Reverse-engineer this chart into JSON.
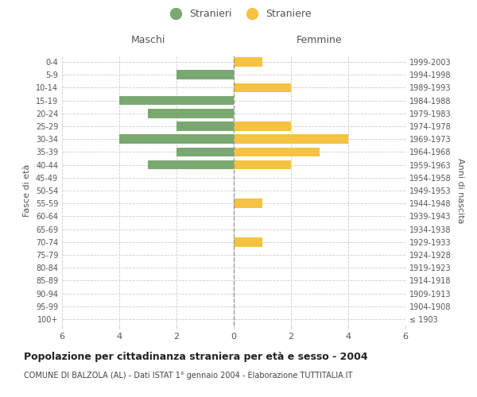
{
  "age_groups": [
    "100+",
    "95-99",
    "90-94",
    "85-89",
    "80-84",
    "75-79",
    "70-74",
    "65-69",
    "60-64",
    "55-59",
    "50-54",
    "45-49",
    "40-44",
    "35-39",
    "30-34",
    "25-29",
    "20-24",
    "15-19",
    "10-14",
    "5-9",
    "0-4"
  ],
  "birth_years": [
    "≤ 1903",
    "1904-1908",
    "1909-1913",
    "1914-1918",
    "1919-1923",
    "1924-1928",
    "1929-1933",
    "1934-1938",
    "1939-1943",
    "1944-1948",
    "1949-1953",
    "1954-1958",
    "1959-1963",
    "1964-1968",
    "1969-1973",
    "1974-1978",
    "1979-1983",
    "1984-1988",
    "1989-1993",
    "1994-1998",
    "1999-2003"
  ],
  "males": [
    0,
    0,
    0,
    0,
    0,
    0,
    0,
    0,
    0,
    0,
    0,
    0,
    3,
    2,
    4,
    2,
    3,
    4,
    0,
    2,
    0
  ],
  "females": [
    0,
    0,
    0,
    0,
    0,
    0,
    1,
    0,
    0,
    1,
    0,
    0,
    2,
    3,
    4,
    2,
    0,
    0,
    2,
    0,
    1
  ],
  "male_color": "#7aa871",
  "female_color": "#f5c242",
  "title": "Popolazione per cittadinanza straniera per età e sesso - 2004",
  "subtitle": "COMUNE DI BALZOLA (AL) - Dati ISTAT 1° gennaio 2004 - Elaborazione TUTTITALIA.IT",
  "xlabel_left": "Maschi",
  "xlabel_right": "Femmine",
  "ylabel_left": "Fasce di età",
  "ylabel_right": "Anni di nascita",
  "legend_male": "Stranieri",
  "legend_female": "Straniere",
  "xlim": 6,
  "background_color": "#ffffff",
  "grid_color": "#cccccc",
  "text_color": "#555555"
}
